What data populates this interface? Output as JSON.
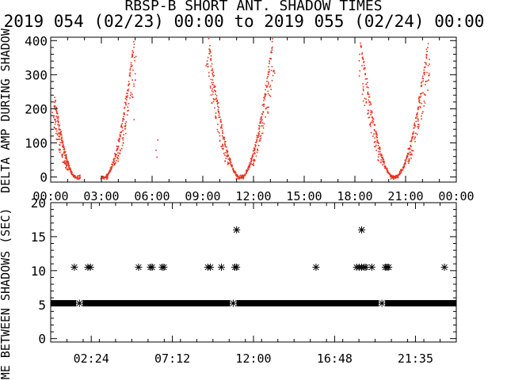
{
  "title": "RBSP-B SHORT ANT. SHADOW TIMES",
  "subtitle": "2019 054 (02/23) 00:00 to 2019 055 (02/24) 00:00",
  "colors": {
    "red": "#e8321e",
    "black": "#000000",
    "background": "#ffffff"
  },
  "chart_data": [
    {
      "type": "scatter",
      "ylabel": "DELTA AMP DURING SHADOW",
      "xlabel_ticks": [
        "00:00",
        "03:00",
        "06:00",
        "09:00",
        "12:00",
        "15:00",
        "18:00",
        "21:00",
        "00:00"
      ],
      "xlim_hours": [
        0,
        24
      ],
      "ylim": [
        -15,
        410
      ],
      "yticks": [
        "0",
        "100",
        "200",
        "300",
        "400"
      ],
      "yticks_values": [
        0,
        100,
        200,
        300,
        400
      ],
      "grid": false,
      "color": "#e8321e",
      "note_series": "dense dotted points forming U-shaped arcs around each perigee",
      "arcs": [
        {
          "center_h": 1.5,
          "width_h": 1.3,
          "peak_left": 230,
          "peak_right": 0,
          "start_h": 0.0
        },
        {
          "center_h": 3.1,
          "width_h": 1.8,
          "peak_left": 0,
          "peak_right": 400
        },
        {
          "center_h": 11.2,
          "width_h": 1.9,
          "peak_left": 400,
          "peak_right": 400
        },
        {
          "center_h": 20.3,
          "width_h": 2.0,
          "peak_left": 400,
          "peak_right": 400
        }
      ],
      "isolated_points": [
        {
          "x": 4.9,
          "y": 170
        },
        {
          "x": 6.2,
          "y": 80
        },
        {
          "x": 6.25,
          "y": 60
        },
        {
          "x": 6.3,
          "y": 110
        }
      ]
    },
    {
      "type": "scatter",
      "ylabel": "TIME BETWEEN SHADOWS (SEC)",
      "xlabel_ticks": [
        "02:24",
        "07:12",
        "12:00",
        "16:48",
        "21:35"
      ],
      "xticks_values_h": [
        2.4,
        7.2,
        12.0,
        16.8,
        21.583
      ],
      "xlim_hours": [
        0,
        24
      ],
      "ylim": [
        -0.5,
        20
      ],
      "yticks": [
        "0",
        "5",
        "10",
        "15",
        "20"
      ],
      "yticks_values": [
        0,
        5,
        10,
        15,
        20
      ],
      "grid": false,
      "marker": "asterisk",
      "color": "#000000",
      "baseline": {
        "y": 5.2,
        "from_h": 0.0,
        "to_h": 24.0
      },
      "points": [
        {
          "x": 1.4,
          "y": 10.5
        },
        {
          "x": 2.2,
          "y": 10.5
        },
        {
          "x": 2.35,
          "y": 10.5
        },
        {
          "x": 5.2,
          "y": 10.5
        },
        {
          "x": 5.9,
          "y": 10.5
        },
        {
          "x": 6.0,
          "y": 10.5
        },
        {
          "x": 6.6,
          "y": 10.5
        },
        {
          "x": 6.7,
          "y": 10.5
        },
        {
          "x": 9.3,
          "y": 10.5
        },
        {
          "x": 9.45,
          "y": 10.5
        },
        {
          "x": 10.1,
          "y": 10.5
        },
        {
          "x": 10.9,
          "y": 10.5
        },
        {
          "x": 11.0,
          "y": 10.5
        },
        {
          "x": 11.0,
          "y": 16.0
        },
        {
          "x": 15.7,
          "y": 10.5
        },
        {
          "x": 18.1,
          "y": 10.5
        },
        {
          "x": 18.25,
          "y": 10.5
        },
        {
          "x": 18.4,
          "y": 10.5
        },
        {
          "x": 18.55,
          "y": 10.5
        },
        {
          "x": 18.65,
          "y": 10.5
        },
        {
          "x": 18.4,
          "y": 16.0
        },
        {
          "x": 19.0,
          "y": 10.5
        },
        {
          "x": 19.8,
          "y": 10.5
        },
        {
          "x": 19.9,
          "y": 10.5
        },
        {
          "x": 20.0,
          "y": 10.5
        },
        {
          "x": 23.3,
          "y": 10.5
        }
      ],
      "baseline_gaps_h": [
        1.7,
        10.8,
        19.6
      ],
      "baseline_gap_value": 5.2
    }
  ]
}
